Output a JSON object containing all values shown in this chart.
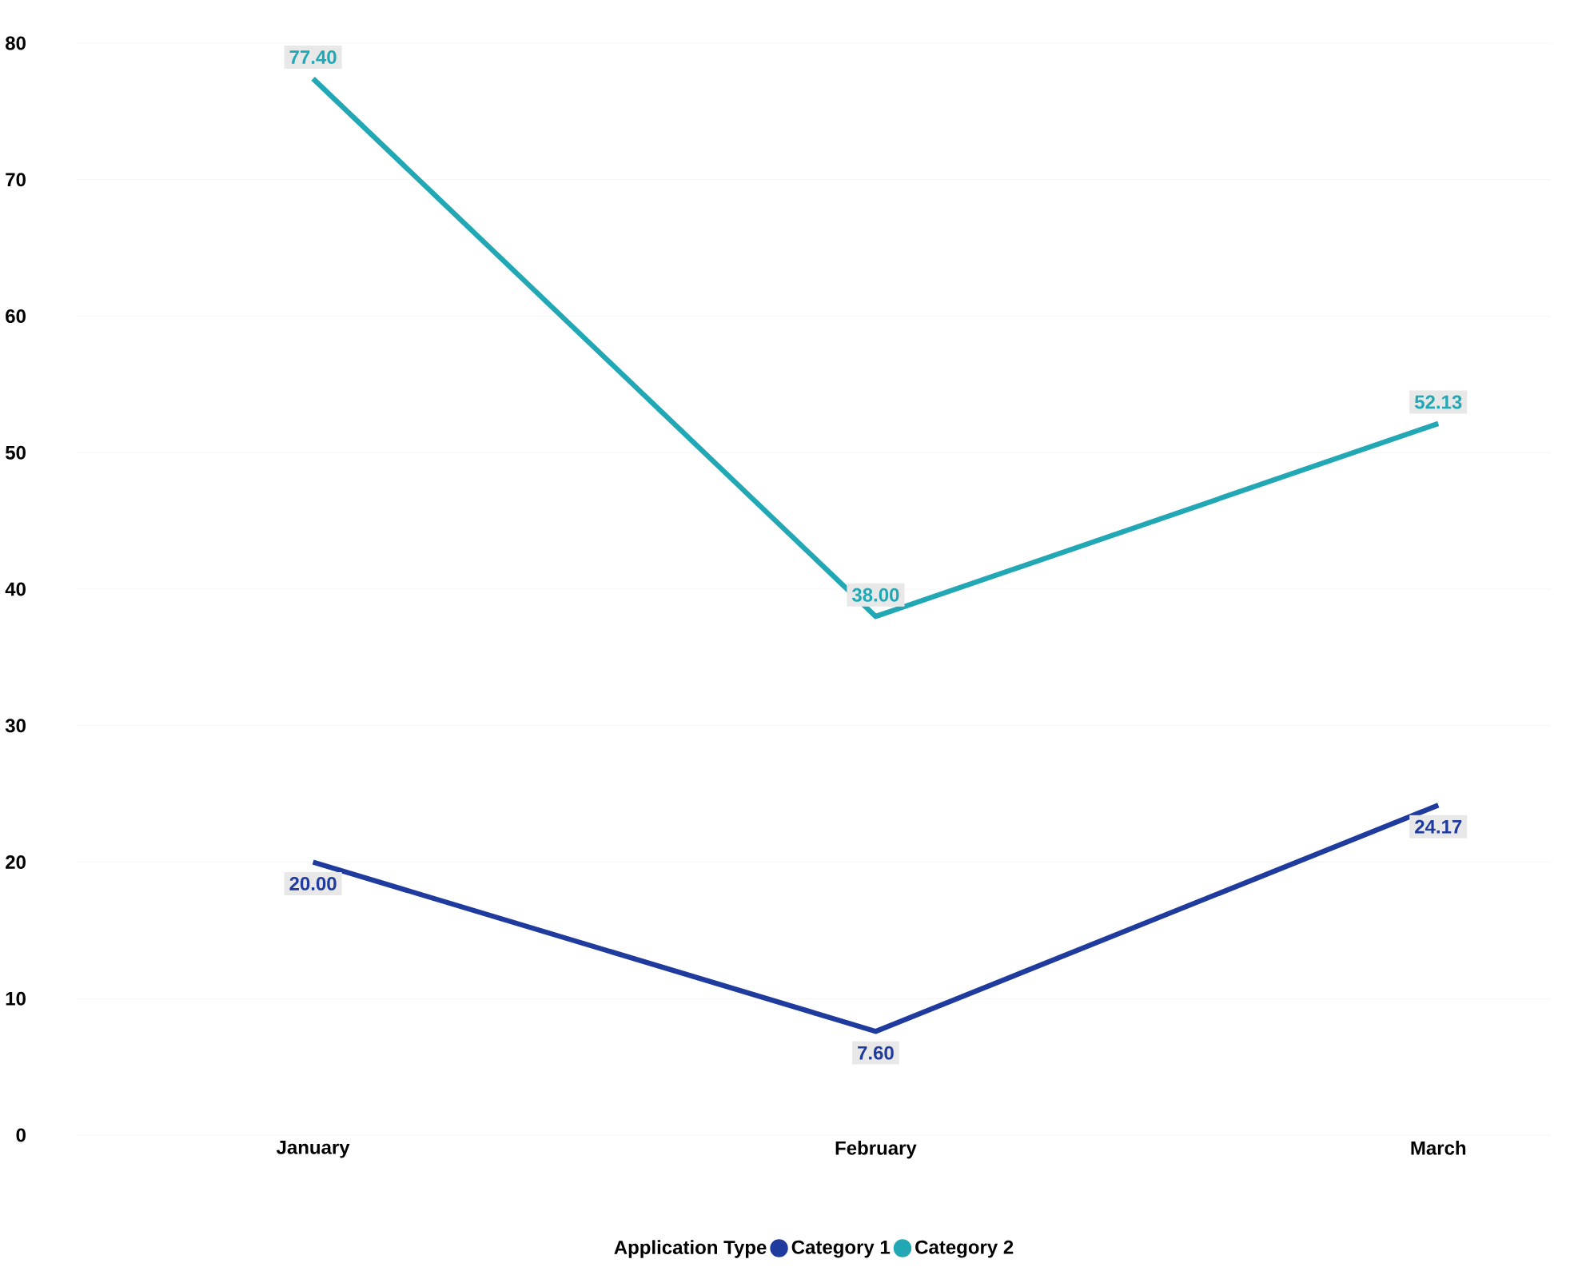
{
  "chart_data": {
    "type": "line",
    "categories": [
      "January",
      "February",
      "March"
    ],
    "series": [
      {
        "name": "Category 1",
        "color": "#1f3b9e",
        "values": [
          20.0,
          7.6,
          24.17
        ],
        "value_labels": [
          "20.00",
          "7.60",
          "24.17"
        ]
      },
      {
        "name": "Category 2",
        "color": "#22a7b5",
        "values": [
          77.4,
          38.0,
          52.13
        ],
        "value_labels": [
          "77.40",
          "38.00",
          "52.13"
        ]
      }
    ],
    "legend_title": "Application Type",
    "ylim": [
      0,
      80
    ],
    "yticks": [
      0,
      10,
      20,
      30,
      40,
      50,
      60,
      70,
      80
    ],
    "grid": "y",
    "legend": "bottom"
  }
}
